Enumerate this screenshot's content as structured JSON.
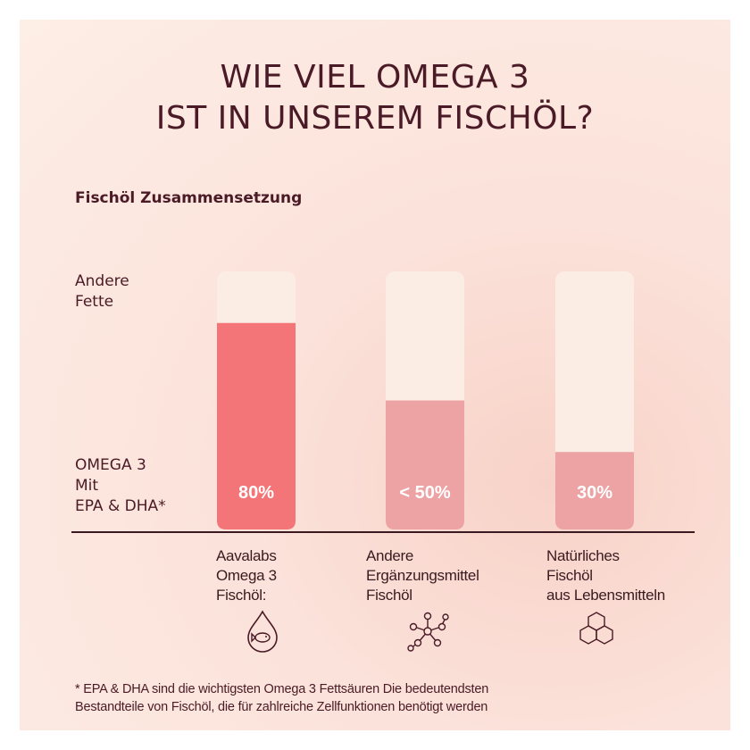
{
  "title_lines": [
    "WIE VIEL OMEGA 3",
    "IST IN UNSEREM FISCHÖL?"
  ],
  "chart_data": {
    "type": "bar",
    "title": "Fischöl Zusammensetzung",
    "categories": [
      "Aavalabs Omega 3 Fischöl:",
      "Andere Ergänzungsmittel Fischöl",
      "Natürliches Fischöl aus Lebensmitteln"
    ],
    "series": [
      {
        "name": "OMEGA 3 Mit EPA & DHA*",
        "values": [
          80,
          50,
          30
        ]
      },
      {
        "name": "Andere Fette",
        "values": [
          20,
          50,
          70
        ]
      }
    ],
    "data_labels": [
      "80%",
      "< 50%",
      "30%"
    ],
    "ylim": [
      0,
      100
    ],
    "stacked": true
  },
  "legend": {
    "top_lines": [
      "Andere",
      "Fette"
    ],
    "bottom_lines": [
      "OMEGA 3",
      "Mit",
      "EPA & DHA*"
    ]
  },
  "category_lines": [
    [
      "Aavalabs",
      "Omega 3",
      "Fischöl:"
    ],
    [
      "Andere",
      "Ergänzungsmittel",
      "Fischöl"
    ],
    [
      "Natürliches",
      "Fischöl",
      "aus Lebensmitteln"
    ]
  ],
  "category_icons": [
    "fish-oil-drop-icon",
    "molecule-icon",
    "hexagon-cells-icon"
  ],
  "colors": {
    "title": "#4a1a26",
    "bar_background": "#fcede4",
    "bar_primary": "#f47577",
    "bar_secondary": "#eda2a4",
    "value_text": "#ffffff"
  },
  "footnote_lines": [
    "* EPA & DHA sind die wichtigsten Omega 3 Fettsäuren Die bedeutendsten",
    "Bestandteile von Fischöl, die für zahlreiche Zellfunktionen benötigt werden"
  ]
}
